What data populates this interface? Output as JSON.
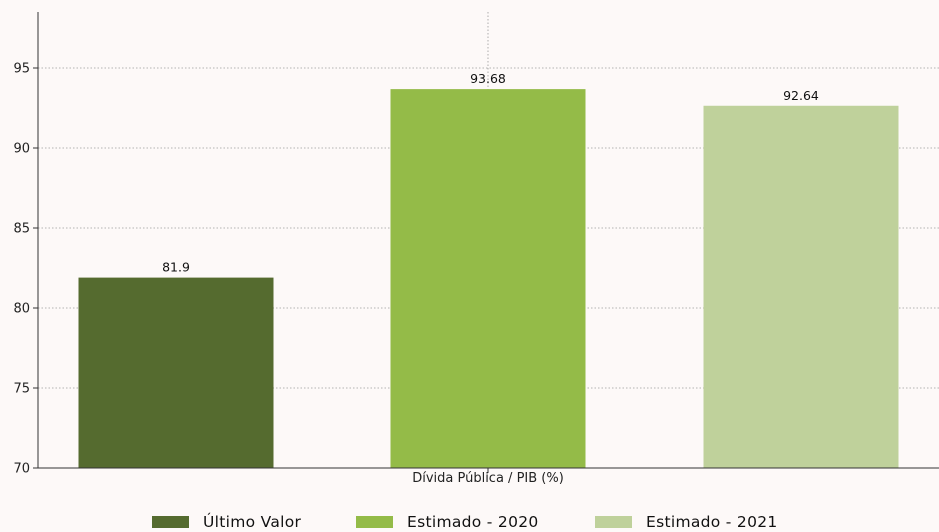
{
  "chart_data": {
    "type": "bar",
    "title": "",
    "xlabel": "Dívida Pública / PIB (%)",
    "ylabel": "",
    "ylim": [
      70,
      98.5
    ],
    "yticks": [
      70,
      75,
      80,
      85,
      90,
      95
    ],
    "grid": true,
    "legend_position": "bottom-center",
    "bars": [
      {
        "label": "Último Valor",
        "value": 81.9,
        "value_label": "81.9",
        "color": "#556b2f"
      },
      {
        "label": "Estimado - 2020",
        "value": 93.68,
        "value_label": "93.68",
        "color": "#94bb48"
      },
      {
        "label": "Estimado - 2021",
        "value": 92.64,
        "value_label": "92.64",
        "color": "#bfd19b"
      }
    ]
  }
}
